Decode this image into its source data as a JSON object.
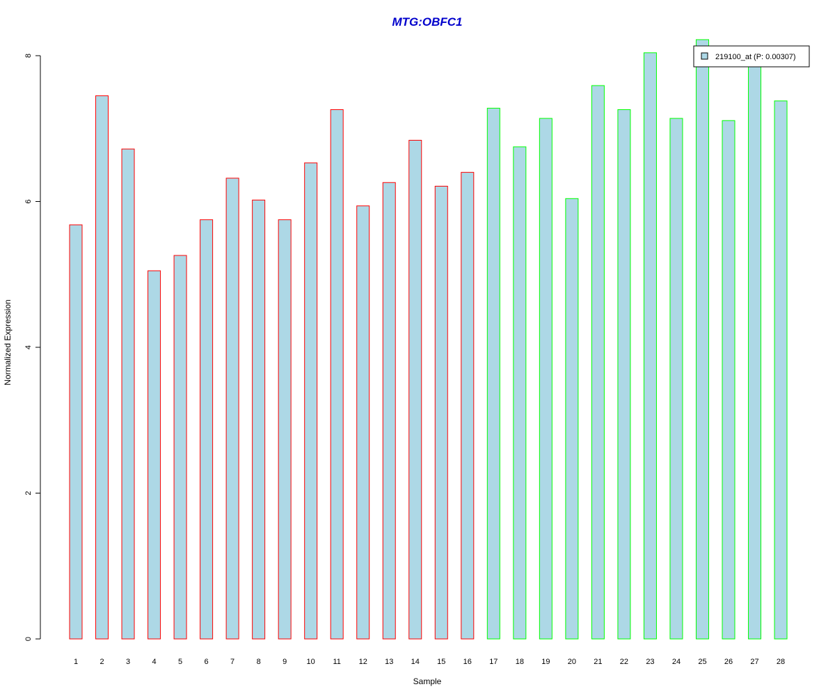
{
  "chart_data": {
    "type": "bar",
    "title": "MTG:OBFC1",
    "xlabel": "Sample",
    "ylabel": "Normalized Expression",
    "ylim": [
      0,
      8
    ],
    "yticks": [
      0,
      2,
      4,
      6,
      8
    ],
    "categories": [
      "1",
      "2",
      "3",
      "4",
      "5",
      "6",
      "7",
      "8",
      "9",
      "10",
      "11",
      "12",
      "13",
      "14",
      "15",
      "16",
      "17",
      "18",
      "19",
      "20",
      "21",
      "22",
      "23",
      "24",
      "25",
      "26",
      "27",
      "28"
    ],
    "values": [
      5.68,
      7.45,
      6.72,
      5.05,
      5.26,
      5.75,
      6.32,
      6.02,
      5.75,
      6.53,
      7.26,
      5.94,
      6.26,
      6.84,
      6.21,
      6.4,
      7.28,
      6.75,
      7.14,
      6.04,
      7.59,
      7.26,
      8.04,
      7.14,
      8.22,
      7.11,
      7.91,
      7.38
    ],
    "groups": [
      {
        "samples": [
          1,
          16
        ],
        "border_color": "#ff0000"
      },
      {
        "samples": [
          17,
          28
        ],
        "border_color": "#00ff00"
      }
    ],
    "bar_fill": "#add8e6",
    "legend": {
      "label": "219100_at (P: 0.00307)",
      "position": "top-right"
    },
    "grid": false
  }
}
